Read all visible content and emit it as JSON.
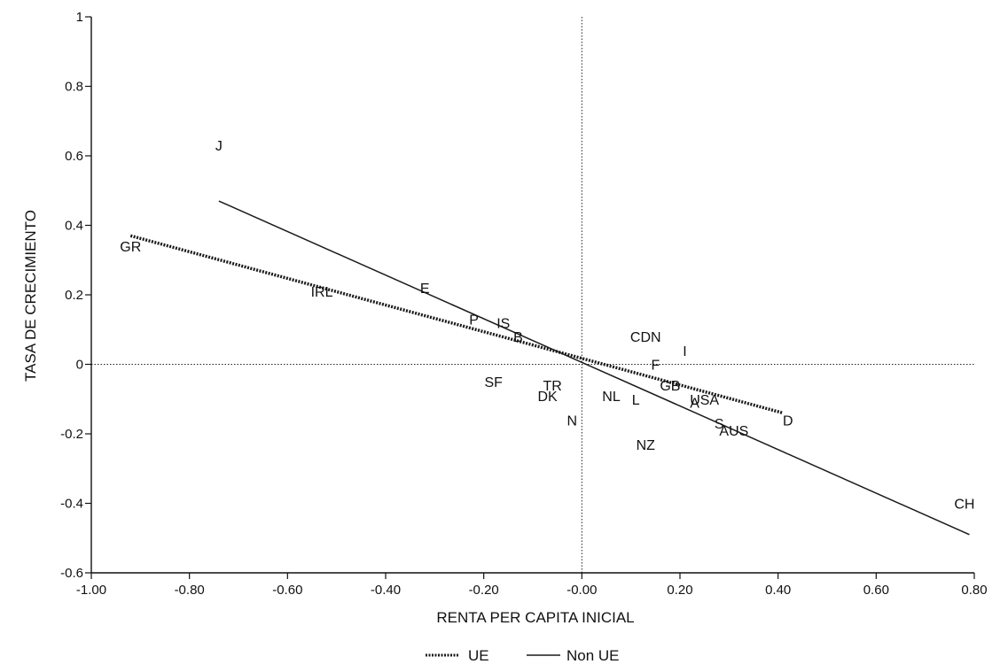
{
  "chart_data": {
    "type": "scatter",
    "title": "",
    "xlabel": "RENTA PER CAPITA INICIAL",
    "ylabel": "TASA DE CRECIMIENTO",
    "xlim": [
      -1.0,
      0.8
    ],
    "ylim": [
      -0.6,
      1.0
    ],
    "x_ticks": [
      "-1.00",
      "-0.80",
      "-0.60",
      "-0.40",
      "-0.20",
      "-0.00",
      "0.20",
      "0.40",
      "0.60",
      "0.80"
    ],
    "y_ticks": [
      "-0.6",
      "-0.4",
      "-0.2",
      "0",
      "0.2",
      "0.4",
      "0.6",
      "0.8",
      "1"
    ],
    "grid": false,
    "reference_lines": {
      "x": 0,
      "y": 0,
      "style": "dotted"
    },
    "points": [
      {
        "label": "J",
        "x": -0.74,
        "y": 0.63
      },
      {
        "label": "GR",
        "x": -0.92,
        "y": 0.34
      },
      {
        "label": "IRL",
        "x": -0.53,
        "y": 0.21
      },
      {
        "label": "E",
        "x": -0.32,
        "y": 0.22
      },
      {
        "label": "P",
        "x": -0.22,
        "y": 0.13
      },
      {
        "label": "IS",
        "x": -0.16,
        "y": 0.12
      },
      {
        "label": "B",
        "x": -0.13,
        "y": 0.08
      },
      {
        "label": "CDN",
        "x": 0.13,
        "y": 0.08
      },
      {
        "label": "I",
        "x": 0.21,
        "y": 0.04
      },
      {
        "label": "F",
        "x": 0.15,
        "y": 0.0
      },
      {
        "label": "SF",
        "x": -0.18,
        "y": -0.05
      },
      {
        "label": "TR",
        "x": -0.06,
        "y": -0.06
      },
      {
        "label": "DK",
        "x": -0.07,
        "y": -0.09
      },
      {
        "label": "GB",
        "x": 0.18,
        "y": -0.06
      },
      {
        "label": "NL",
        "x": 0.06,
        "y": -0.09
      },
      {
        "label": "L",
        "x": 0.11,
        "y": -0.1
      },
      {
        "label": "USA",
        "x": 0.25,
        "y": -0.1
      },
      {
        "label": "A",
        "x": 0.23,
        "y": -0.11
      },
      {
        "label": "N",
        "x": -0.02,
        "y": -0.16
      },
      {
        "label": "D",
        "x": 0.42,
        "y": -0.16
      },
      {
        "label": "S",
        "x": 0.28,
        "y": -0.17
      },
      {
        "label": "AUS",
        "x": 0.31,
        "y": -0.19
      },
      {
        "label": "NZ",
        "x": 0.13,
        "y": -0.23
      },
      {
        "label": "CH",
        "x": 0.78,
        "y": -0.4
      }
    ],
    "series": [
      {
        "name": "UE",
        "style": "dotted-thick",
        "color": "#1a1a1a",
        "line": [
          [
            -0.92,
            0.37
          ],
          [
            0.41,
            -0.14
          ]
        ]
      },
      {
        "name": "Non UE",
        "style": "solid",
        "color": "#1a1a1a",
        "line": [
          [
            -0.74,
            0.47
          ],
          [
            0.79,
            -0.49
          ]
        ]
      }
    ],
    "legend_position": "bottom-center"
  }
}
